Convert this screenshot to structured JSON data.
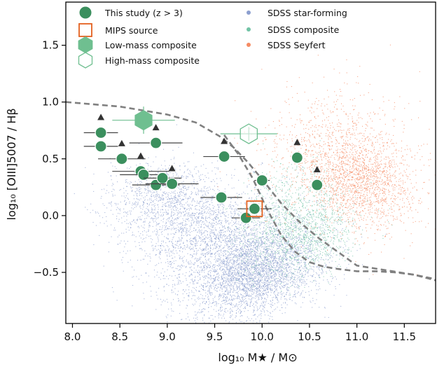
{
  "chart_data": {
    "type": "scatter",
    "xlabel": "log₁₀ M★ / M⊙",
    "ylabel": "log₁₀ [OIII]5007 / Hβ",
    "xlim": [
      7.93,
      11.83
    ],
    "ylim": [
      -0.95,
      1.88
    ],
    "x_ticks": [
      "8.0",
      "8.5",
      "9.0",
      "9.5",
      "10.0",
      "10.5",
      "11.0",
      "11.5"
    ],
    "y_ticks": [
      "−0.5",
      "0.0",
      "0.5",
      "1.0",
      "1.5"
    ],
    "legend_position": "top-left",
    "colors": {
      "this_study": "#3b8f5e",
      "mips": "#e3611f",
      "composite_marker": "#6fbf90",
      "sdss_star_forming": "#8c9fcf",
      "sdss_composite": "#71c3a5",
      "sdss_seyfert": "#f58b63",
      "demarcation": "#808080",
      "errorbar": "#444444"
    },
    "legend": [
      {
        "key": "this_study",
        "label": "This study (z > 3)"
      },
      {
        "key": "mips",
        "label": "MIPS source"
      },
      {
        "key": "low_mass",
        "label": "Low-mass composite"
      },
      {
        "key": "high_mass",
        "label": "High-mass composite"
      },
      {
        "key": "sdss_sf",
        "label": "SDSS star-forming"
      },
      {
        "key": "sdss_comp",
        "label": "SDSS composite"
      },
      {
        "key": "sdss_sey",
        "label": "SDSS Seyfert"
      }
    ],
    "series": [
      {
        "name": "This study (z > 3)",
        "points": [
          {
            "x": 8.3,
            "y": 0.73,
            "xerr": 0.18,
            "lower_limit": true
          },
          {
            "x": 8.3,
            "y": 0.61,
            "xerr": 0.18,
            "lower_limit": false
          },
          {
            "x": 8.52,
            "y": 0.5,
            "xerr": 0.25,
            "lower_limit": true
          },
          {
            "x": 8.88,
            "y": 0.64,
            "xerr": 0.28,
            "lower_limit": true
          },
          {
            "x": 8.72,
            "y": 0.39,
            "xerr": 0.3,
            "lower_limit": true
          },
          {
            "x": 8.75,
            "y": 0.36,
            "xerr": 0.25,
            "lower_limit": false
          },
          {
            "x": 8.88,
            "y": 0.27,
            "xerr": 0.25,
            "lower_limit": false
          },
          {
            "x": 8.95,
            "y": 0.33,
            "xerr": 0.2,
            "lower_limit": false
          },
          {
            "x": 9.05,
            "y": 0.28,
            "xerr": 0.28,
            "lower_limit": true
          },
          {
            "x": 9.6,
            "y": 0.52,
            "xerr": 0.22,
            "lower_limit": true
          },
          {
            "x": 9.57,
            "y": 0.16,
            "xerr": 0.22,
            "lower_limit": false
          },
          {
            "x": 9.83,
            "y": -0.02,
            "xerr": 0.15,
            "lower_limit": false
          },
          {
            "x": 9.92,
            "y": 0.06,
            "xerr": 0.18,
            "lower_limit": false
          },
          {
            "x": 10.0,
            "y": 0.31,
            "xerr": 0.08,
            "lower_limit": false
          },
          {
            "x": 10.37,
            "y": 0.51,
            "xerr": 0.0,
            "lower_limit": true
          },
          {
            "x": 10.58,
            "y": 0.27,
            "xerr": 0.0,
            "lower_limit": true
          }
        ]
      },
      {
        "name": "MIPS source",
        "points": [
          {
            "x": 9.92,
            "y": 0.06
          }
        ]
      },
      {
        "name": "Low-mass composite",
        "points": [
          {
            "x": 8.75,
            "y": 0.84,
            "xerr": 0.33,
            "yerr": 0.12
          }
        ]
      },
      {
        "name": "High-mass composite",
        "points": [
          {
            "x": 9.86,
            "y": 0.72,
            "xerr": 0.3,
            "yerr": 0.06
          }
        ]
      }
    ],
    "demarcation_curves": [
      {
        "x": [
          7.93,
          8.5,
          9.0,
          9.3,
          9.55,
          9.7,
          9.85,
          10.0,
          10.2,
          10.4,
          10.6,
          10.8,
          11.0,
          11.3,
          11.6,
          11.83
        ],
        "y": [
          1.0,
          0.96,
          0.89,
          0.82,
          0.7,
          0.6,
          0.47,
          0.32,
          0.11,
          -0.06,
          -0.2,
          -0.32,
          -0.44,
          -0.48,
          -0.52,
          -0.57
        ]
      },
      {
        "x": [
          9.6,
          9.75,
          9.9,
          10.05,
          10.2,
          10.35,
          10.5,
          10.65,
          10.8,
          11.0,
          11.2,
          11.4,
          11.6,
          11.83
        ],
        "y": [
          0.71,
          0.54,
          0.33,
          0.06,
          -0.17,
          -0.32,
          -0.41,
          -0.45,
          -0.47,
          -0.49,
          -0.49,
          -0.5,
          -0.52,
          -0.56
        ]
      }
    ],
    "sdss_clouds": [
      {
        "name": "SDSS star-forming",
        "count": 6500,
        "blobs": [
          {
            "cx": 9.95,
            "cy": -0.48,
            "sx": 0.36,
            "sy": 0.21,
            "rho": 0.35,
            "w": 0.55
          },
          {
            "cx": 9.45,
            "cy": -0.18,
            "sx": 0.4,
            "sy": 0.22,
            "rho": 0.1,
            "w": 0.3
          },
          {
            "cx": 8.95,
            "cy": 0.15,
            "sx": 0.3,
            "sy": 0.17,
            "rho": 0.1,
            "w": 0.15
          }
        ]
      },
      {
        "name": "SDSS composite",
        "count": 1400,
        "blobs": [
          {
            "cx": 10.45,
            "cy": -0.18,
            "sx": 0.28,
            "sy": 0.18,
            "rho": 0.3,
            "w": 0.65
          },
          {
            "cx": 10.25,
            "cy": 0.1,
            "sx": 0.25,
            "sy": 0.2,
            "rho": 0.2,
            "w": 0.35
          }
        ]
      },
      {
        "name": "SDSS Seyfert",
        "count": 2400,
        "blobs": [
          {
            "cx": 11.05,
            "cy": 0.28,
            "sx": 0.28,
            "sy": 0.2,
            "rho": -0.2,
            "w": 0.6
          },
          {
            "cx": 10.8,
            "cy": 0.55,
            "sx": 0.4,
            "sy": 0.28,
            "rho": 0.0,
            "w": 0.4
          }
        ]
      }
    ]
  }
}
